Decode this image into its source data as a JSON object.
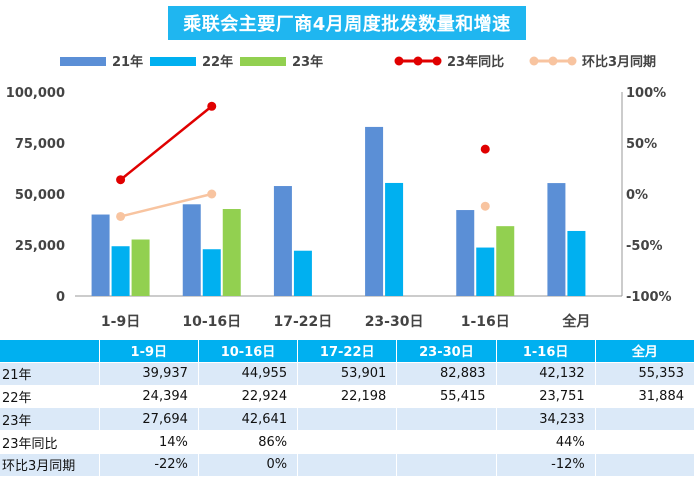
{
  "chart_data": {
    "type": "bar",
    "title": "乘联会主要厂商4月周度批发数量和增速",
    "categories": [
      "1-9日",
      "10-16日",
      "17-22日",
      "23-30日",
      "1-16日",
      "全月"
    ],
    "series": [
      {
        "name": "21年",
        "kind": "bar",
        "color": "#5b8fd6",
        "values": [
          39937,
          44955,
          53901,
          82883,
          42132,
          55353
        ]
      },
      {
        "name": "22年",
        "kind": "bar",
        "color": "#00b0f0",
        "values": [
          24394,
          22924,
          22198,
          55415,
          23751,
          31884
        ]
      },
      {
        "name": "23年",
        "kind": "bar",
        "color": "#92d050",
        "values": [
          27694,
          42641,
          null,
          null,
          34233,
          null
        ]
      },
      {
        "name": "23年同比",
        "kind": "line",
        "axis": "right",
        "color": "#e00000",
        "values": [
          14,
          86,
          null,
          null,
          44,
          null
        ]
      },
      {
        "name": "环比3月同期",
        "kind": "line",
        "axis": "right",
        "color": "#f8c4a0",
        "values": [
          -22,
          0,
          null,
          null,
          -12,
          null
        ]
      }
    ],
    "ylim": [
      0,
      100000
    ],
    "yticks": [
      "0",
      "25,000",
      "50,000",
      "75,000",
      "100,000"
    ],
    "y2lim": [
      -100,
      100
    ],
    "y2ticks": [
      "-100%",
      "-50%",
      "0%",
      "50%",
      "100%"
    ],
    "grid": false,
    "legend_position": "top"
  },
  "table": {
    "headers": [
      "",
      "1-9日",
      "10-16日",
      "17-22日",
      "23-30日",
      "1-16日",
      "全月"
    ],
    "rows": [
      {
        "label": "21年",
        "cells": [
          "39,937",
          "44,955",
          "53,901",
          "82,883",
          "42,132",
          "55,353"
        ]
      },
      {
        "label": "22年",
        "cells": [
          "24,394",
          "22,924",
          "22,198",
          "55,415",
          "23,751",
          "31,884"
        ]
      },
      {
        "label": "23年",
        "cells": [
          "27,694",
          "42,641",
          "",
          "",
          "34,233",
          ""
        ]
      },
      {
        "label": "23年同比",
        "cells": [
          "14%",
          "86%",
          "",
          "",
          "44%",
          ""
        ]
      },
      {
        "label": "环比3月同期",
        "cells": [
          "-22%",
          "0%",
          "",
          "",
          "-12%",
          ""
        ]
      }
    ]
  }
}
